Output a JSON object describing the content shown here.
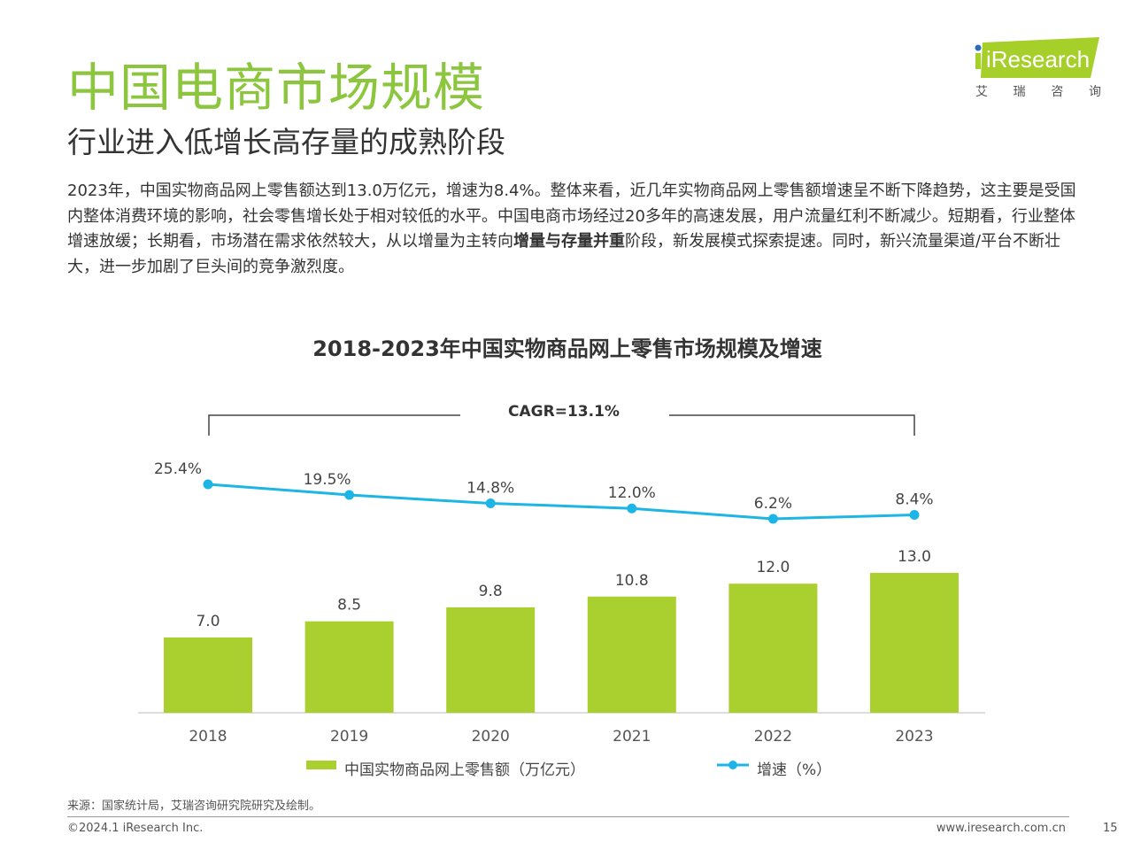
{
  "header": {
    "title": "中国电商市场规模",
    "subtitle": "行业进入低增长高存量的成熟阶段"
  },
  "logo": {
    "text": "iResearch",
    "cn": [
      "艾",
      "瑞",
      "咨",
      "询"
    ]
  },
  "paragraph": {
    "part1": "2023年，中国实物商品网上零售额达到13.0万亿元，增速为8.4%。整体来看，近几年实物商品网上零售额增速呈不断下降趋势，这主要是受国内整体消费环境的影响，社会零售增长处于相对较低的水平。中国电商市场经过20多年的高速发展，用户流量红利不断减少。短期看，行业整体增速放缓；长期看，市场潜在需求依然较大，从以增量为主转向",
    "bold": "增量与存量并重",
    "part2": "阶段，新发展模式探索提速。同时，新兴流量渠道/平台不断壮大，进一步加剧了巨头间的竞争激烈度。"
  },
  "chart_data": {
    "type": "bar+line",
    "title": "2018-2023年中国实物商品网上零售市场规模及增速",
    "categories": [
      "2018",
      "2019",
      "2020",
      "2021",
      "2022",
      "2023"
    ],
    "series": [
      {
        "name": "中国实物商品网上零售额（万亿元）",
        "type": "bar",
        "values": [
          7.0,
          8.5,
          9.8,
          10.8,
          12.0,
          13.0
        ],
        "labels": [
          "7.0",
          "8.5",
          "9.8",
          "10.8",
          "12.0",
          "13.0"
        ],
        "color": "#a9d02e"
      },
      {
        "name": "增速（%）",
        "type": "line",
        "values": [
          25.4,
          19.5,
          14.8,
          12.0,
          6.2,
          8.4
        ],
        "labels": [
          "25.4%",
          "19.5%",
          "14.8%",
          "12.0%",
          "6.2%",
          "8.4%"
        ],
        "color": "#1db5e6"
      }
    ],
    "annotation": "CAGR=13.1%",
    "legend": "bottom"
  },
  "footer": {
    "source": "来源：国家统计局，艾瑞咨询研究院研究及绘制。",
    "copyright": "©2024.1 iResearch Inc.",
    "website": "www.iresearch.com.cn",
    "page": "15"
  }
}
